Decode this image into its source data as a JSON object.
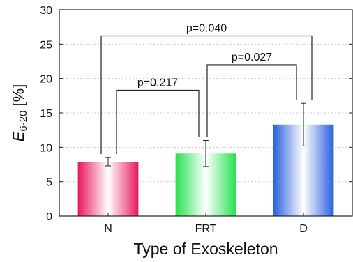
{
  "chart_data": {
    "type": "bar",
    "categories": [
      "N",
      "FRT",
      "D"
    ],
    "values": [
      7.9,
      9.1,
      13.3
    ],
    "errors": [
      0.6,
      1.9,
      3.1
    ],
    "ylim": [
      0,
      30
    ],
    "yticks": [
      "0",
      "5",
      "10",
      "15",
      "20",
      "25",
      "30"
    ],
    "ytick_values": [
      0,
      5,
      10,
      15,
      20,
      25,
      30
    ],
    "xlabel": "Type of Exoskeleton",
    "ylabel_main": "E",
    "ylabel_sub": "6-20",
    "ylabel_unit": " [%]",
    "grid": "horizontal dashed",
    "bar_colors": [
      "#e8185e",
      "#28e050",
      "#2a5fe0"
    ],
    "comparisons": [
      {
        "from": 0,
        "to": 1,
        "label": "p=0.217",
        "level": 18.3
      },
      {
        "from": 1,
        "to": 2,
        "label": "p=0.027",
        "level": 22.0
      },
      {
        "from": 0,
        "to": 2,
        "label": "p=0.040",
        "level": 26.2
      }
    ]
  }
}
